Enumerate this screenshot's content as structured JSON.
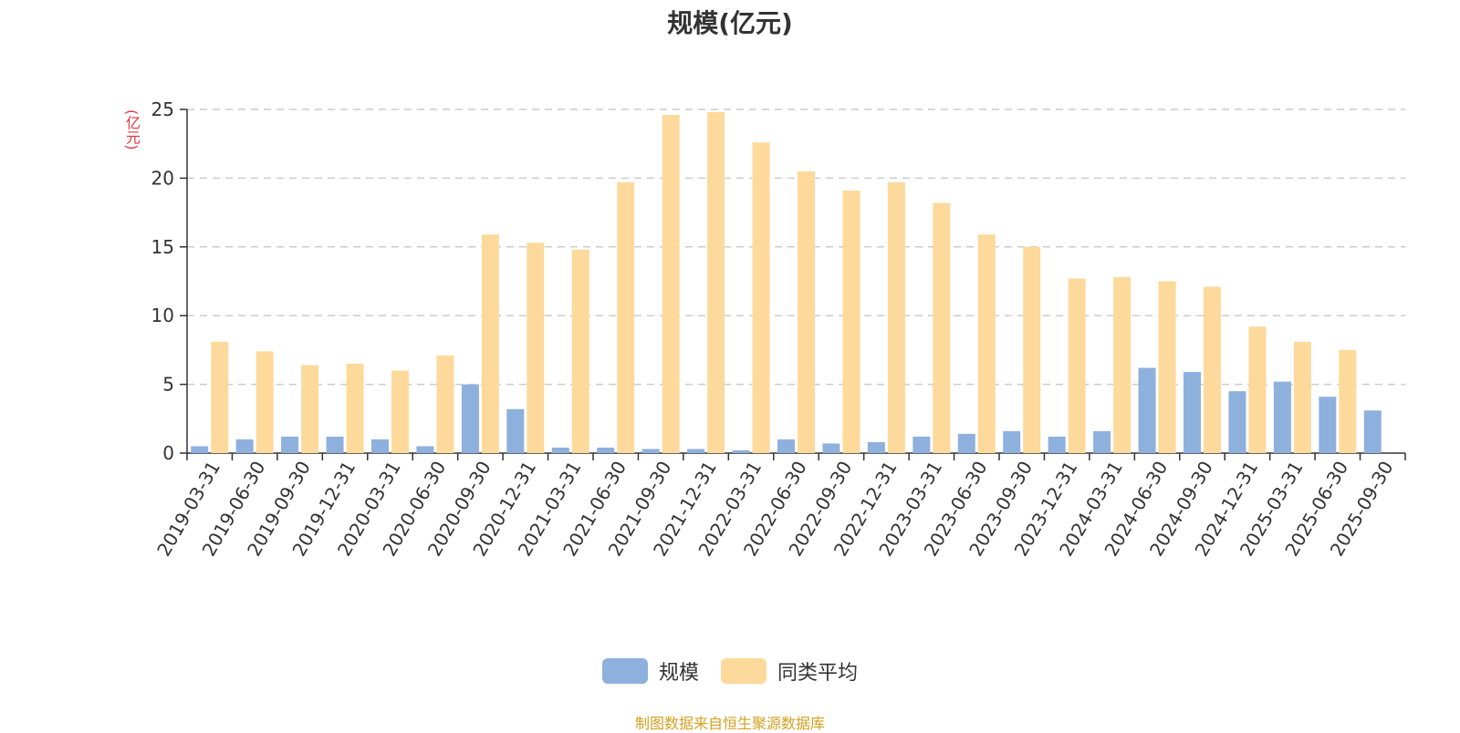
{
  "chart_data": {
    "type": "bar",
    "title": "规模(亿元)",
    "ylabel": "(亿元)",
    "ylim": [
      0,
      25
    ],
    "yticks": [
      0,
      5,
      10,
      15,
      20,
      25
    ],
    "grid": true,
    "legend_position": "bottom-center",
    "categories": [
      "2019-03-31",
      "2019-06-30",
      "2019-09-30",
      "2019-12-31",
      "2020-03-31",
      "2020-06-30",
      "2020-09-30",
      "2020-12-31",
      "2021-03-31",
      "2021-06-30",
      "2021-09-30",
      "2021-12-31",
      "2022-03-31",
      "2022-06-30",
      "2022-09-30",
      "2022-12-31",
      "2023-03-31",
      "2023-06-30",
      "2023-09-30",
      "2023-12-31",
      "2024-03-31",
      "2024-06-30",
      "2024-09-30",
      "2024-12-31",
      "2025-03-31",
      "2025-06-30",
      "2025-09-30"
    ],
    "series": [
      {
        "name": "规模",
        "color": "#8eb0dd",
        "values": [
          0.5,
          1.0,
          1.2,
          1.2,
          1.0,
          0.5,
          5.0,
          3.2,
          0.4,
          0.4,
          0.3,
          0.3,
          0.2,
          1.0,
          0.7,
          0.8,
          1.2,
          1.4,
          1.6,
          1.2,
          1.6,
          6.2,
          5.9,
          4.5,
          5.2,
          4.1,
          3.1
        ]
      },
      {
        "name": "同类平均",
        "color": "#fdd99b",
        "values": [
          8.1,
          7.4,
          6.4,
          6.5,
          6.0,
          7.1,
          15.9,
          15.3,
          14.8,
          19.7,
          24.6,
          24.8,
          22.6,
          20.5,
          19.1,
          19.7,
          18.2,
          15.9,
          15.0,
          12.7,
          12.8,
          12.5,
          12.1,
          9.2,
          8.1,
          7.5,
          null
        ]
      }
    ]
  },
  "source": "制图数据来自恒生聚源数据库"
}
